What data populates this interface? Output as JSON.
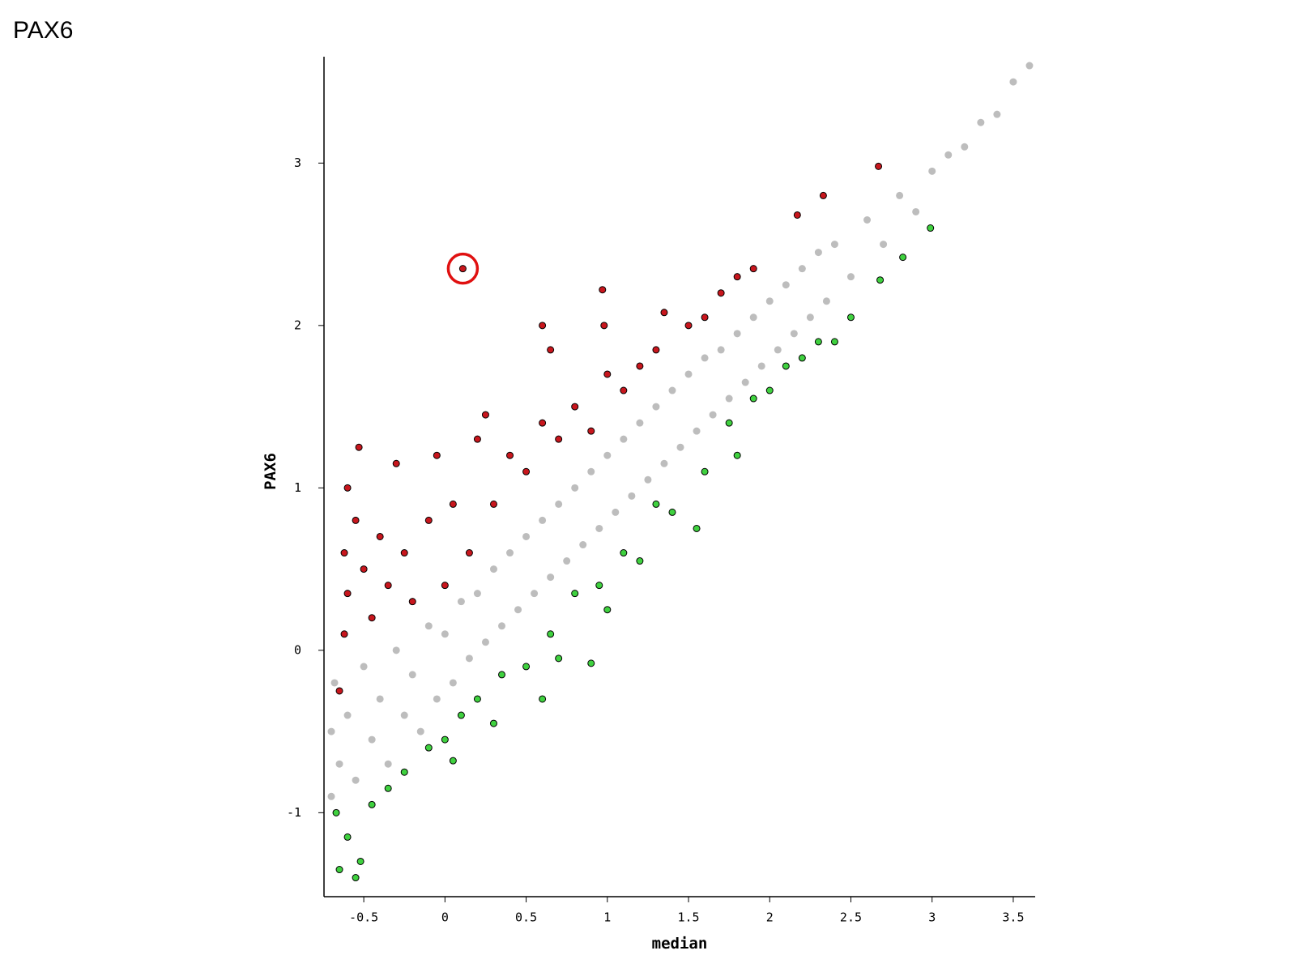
{
  "chart_data": {
    "type": "scatter",
    "title": "PAX6",
    "x_label": "median",
    "y_label": "PAX6",
    "xlim": [
      -0.745,
      3.635
    ],
    "ylim": [
      -1.517,
      3.655
    ],
    "xticks": [
      -0.5,
      0,
      0.5,
      1,
      1.5,
      2,
      2.5,
      3,
      3.5
    ],
    "yticks": [
      -1,
      0,
      1,
      2,
      3
    ],
    "highlight_color": "#e01010",
    "series": [
      {
        "color": "#bdbdbd",
        "outline": false,
        "x": [
          -0.7,
          -0.7,
          -0.68,
          -0.65,
          -0.6,
          -0.55,
          -0.5,
          -0.45,
          -0.4,
          -0.35,
          -0.3,
          -0.25,
          -0.2,
          -0.15,
          -0.1,
          -0.05,
          0,
          0.05,
          0.1,
          0.15,
          0.2,
          0.25,
          0.3,
          0.35,
          0.4,
          0.45,
          0.5,
          0.55,
          0.6,
          0.65,
          0.7,
          0.75,
          0.8,
          0.85,
          0.9,
          0.95,
          1.0,
          1.05,
          1.1,
          1.15,
          1.2,
          1.25,
          1.3,
          1.35,
          1.4,
          1.45,
          1.5,
          1.55,
          1.6,
          1.65,
          1.7,
          1.75,
          1.8,
          1.85,
          1.9,
          1.95,
          2.0,
          2.05,
          2.1,
          2.15,
          2.2,
          2.25,
          2.3,
          2.35,
          2.4,
          2.5,
          2.6,
          2.7,
          2.8,
          2.9,
          3.0,
          3.1,
          3.2,
          3.3,
          3.4,
          3.5,
          3.6
        ],
        "y": [
          -0.9,
          -0.5,
          -0.2,
          -0.7,
          -0.4,
          -0.8,
          -0.1,
          -0.55,
          -0.3,
          -0.7,
          0.0,
          -0.4,
          -0.15,
          -0.5,
          0.15,
          -0.3,
          0.1,
          -0.2,
          0.3,
          -0.05,
          0.35,
          0.05,
          0.5,
          0.15,
          0.6,
          0.25,
          0.7,
          0.35,
          0.8,
          0.45,
          0.9,
          0.55,
          1.0,
          0.65,
          1.1,
          0.75,
          1.2,
          0.85,
          1.3,
          0.95,
          1.4,
          1.05,
          1.5,
          1.15,
          1.6,
          1.25,
          1.7,
          1.35,
          1.8,
          1.45,
          1.85,
          1.55,
          1.95,
          1.65,
          2.05,
          1.75,
          2.15,
          1.85,
          2.25,
          1.95,
          2.35,
          2.05,
          2.45,
          2.15,
          2.5,
          2.3,
          2.65,
          2.5,
          2.8,
          2.7,
          2.95,
          3.05,
          3.1,
          3.25,
          3.3,
          3.5,
          3.6
        ]
      },
      {
        "color": "#c8161d",
        "outline": true,
        "highlight_index": 18,
        "x": [
          -0.65,
          -0.62,
          -0.6,
          -0.62,
          -0.6,
          -0.55,
          -0.53,
          -0.5,
          -0.45,
          -0.4,
          -0.35,
          -0.3,
          -0.25,
          -0.2,
          -0.1,
          -0.05,
          0,
          0.05,
          0.11,
          0.15,
          0.2,
          0.25,
          0.3,
          0.4,
          0.5,
          0.6,
          0.6,
          0.65,
          0.7,
          0.8,
          0.9,
          0.97,
          0.98,
          1.0,
          1.1,
          1.2,
          1.3,
          1.35,
          1.5,
          1.6,
          1.7,
          1.8,
          1.9,
          2.17,
          2.33,
          2.67
        ],
        "y": [
          -0.25,
          0.1,
          0.35,
          0.6,
          1.0,
          0.8,
          1.25,
          0.5,
          0.2,
          0.7,
          0.4,
          1.15,
          0.6,
          0.3,
          0.8,
          1.2,
          0.4,
          0.9,
          2.35,
          0.6,
          1.3,
          1.45,
          0.9,
          1.2,
          1.1,
          2.0,
          1.4,
          1.85,
          1.3,
          1.5,
          1.35,
          2.22,
          2.0,
          1.7,
          1.6,
          1.75,
          1.85,
          2.08,
          2.0,
          2.05,
          2.2,
          2.3,
          2.35,
          2.68,
          2.8,
          2.98
        ]
      },
      {
        "color": "#3fd13f",
        "outline": true,
        "x": [
          -0.67,
          -0.65,
          -0.6,
          -0.55,
          -0.52,
          -0.45,
          -0.35,
          -0.25,
          -0.1,
          0,
          0.05,
          0.1,
          0.2,
          0.3,
          0.35,
          0.5,
          0.6,
          0.65,
          0.7,
          0.8,
          0.9,
          0.95,
          1.0,
          1.1,
          1.2,
          1.3,
          1.4,
          1.55,
          1.6,
          1.75,
          1.8,
          1.9,
          2.0,
          2.1,
          2.2,
          2.3,
          2.4,
          2.5,
          2.68,
          2.82,
          2.99
        ],
        "y": [
          -1.0,
          -1.35,
          -1.15,
          -1.4,
          -1.3,
          -0.95,
          -0.85,
          -0.75,
          -0.6,
          -0.55,
          -0.68,
          -0.4,
          -0.3,
          -0.45,
          -0.15,
          -0.1,
          -0.3,
          0.1,
          -0.05,
          0.35,
          -0.08,
          0.4,
          0.25,
          0.6,
          0.55,
          0.9,
          0.85,
          0.75,
          1.1,
          1.4,
          1.2,
          1.55,
          1.6,
          1.75,
          1.8,
          1.9,
          1.9,
          2.05,
          2.28,
          2.42,
          2.6
        ]
      }
    ]
  }
}
